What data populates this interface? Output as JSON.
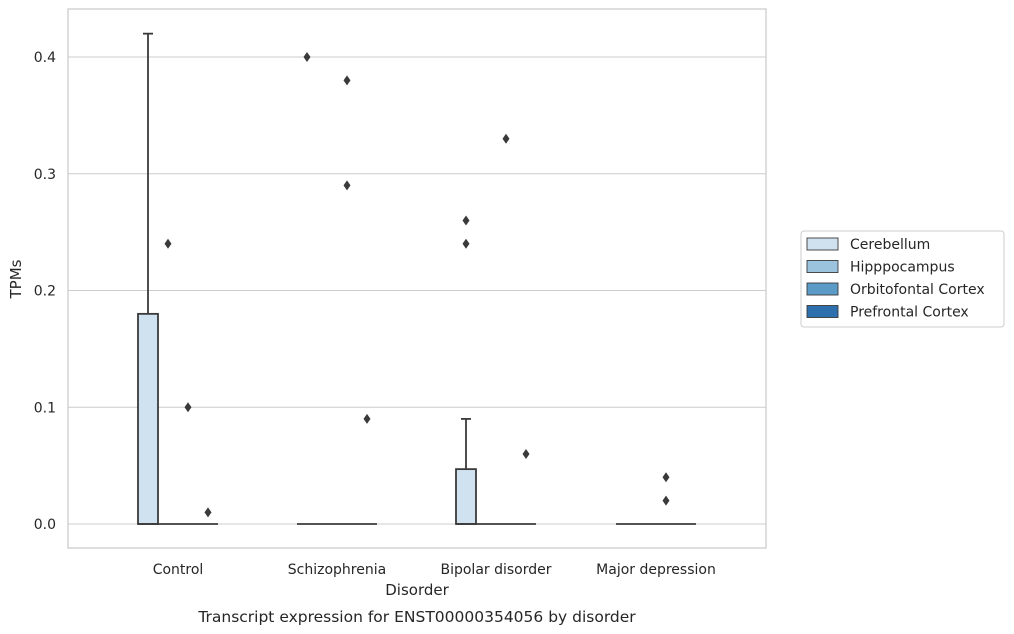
{
  "chart_data": {
    "type": "boxplot",
    "title": "",
    "caption": "Transcript expression for ENST00000354056 by disorder",
    "xlabel": "Disorder",
    "ylabel": "TPMs",
    "ylim": [
      -0.02,
      0.443
    ],
    "yticks": [
      0.0,
      0.1,
      0.2,
      0.3,
      0.4
    ],
    "ytick_labels": [
      "0.0",
      "0.1",
      "0.2",
      "0.3",
      "0.4"
    ],
    "grid": "horizontal",
    "legend": {
      "placement": "right"
    },
    "categories": [
      "Control",
      "Schizophrenia",
      "Bipolar disorder",
      "Major depression"
    ],
    "series": [
      {
        "name": "Cerebellum",
        "color": "#d0e1f0",
        "boxes": [
          {
            "q1": 0.0,
            "median": 0.0,
            "q3": 0.18,
            "whisker_low": 0.0,
            "whisker_high": 0.42,
            "outliers": []
          },
          {
            "q1": 0.0,
            "median": 0.0,
            "q3": 0.0,
            "whisker_low": 0.0,
            "whisker_high": 0.0,
            "outliers": [
              0.4
            ]
          },
          {
            "q1": 0.0,
            "median": 0.0,
            "q3": 0.047,
            "whisker_low": 0.0,
            "whisker_high": 0.09,
            "outliers": [
              0.26,
              0.24
            ]
          },
          {
            "q1": 0.0,
            "median": 0.0,
            "q3": 0.0,
            "whisker_low": 0.0,
            "whisker_high": 0.0,
            "outliers": []
          }
        ]
      },
      {
        "name": "Hipppocampus",
        "color": "#9cc3de",
        "boxes": [
          {
            "q1": 0.0,
            "median": 0.0,
            "q3": 0.0,
            "whisker_low": 0.0,
            "whisker_high": 0.0,
            "outliers": [
              0.24
            ]
          },
          {
            "q1": 0.0,
            "median": 0.0,
            "q3": 0.0,
            "whisker_low": 0.0,
            "whisker_high": 0.0,
            "outliers": []
          },
          {
            "q1": 0.0,
            "median": 0.0,
            "q3": 0.0,
            "whisker_low": 0.0,
            "whisker_high": 0.0,
            "outliers": []
          },
          {
            "q1": 0.0,
            "median": 0.0,
            "q3": 0.0,
            "whisker_low": 0.0,
            "whisker_high": 0.0,
            "outliers": []
          }
        ]
      },
      {
        "name": "Orbitofontal Cortex",
        "color": "#5b9bc7",
        "boxes": [
          {
            "q1": 0.0,
            "median": 0.0,
            "q3": 0.0,
            "whisker_low": 0.0,
            "whisker_high": 0.0,
            "outliers": [
              0.1
            ]
          },
          {
            "q1": 0.0,
            "median": 0.0,
            "q3": 0.0,
            "whisker_low": 0.0,
            "whisker_high": 0.0,
            "outliers": [
              0.38,
              0.29
            ]
          },
          {
            "q1": 0.0,
            "median": 0.0,
            "q3": 0.0,
            "whisker_low": 0.0,
            "whisker_high": 0.0,
            "outliers": [
              0.33
            ]
          },
          {
            "q1": 0.0,
            "median": 0.0,
            "q3": 0.0,
            "whisker_low": 0.0,
            "whisker_high": 0.0,
            "outliers": [
              0.04,
              0.02
            ]
          }
        ]
      },
      {
        "name": "Prefrontal Cortex",
        "color": "#2e6fad",
        "boxes": [
          {
            "q1": 0.0,
            "median": 0.0,
            "q3": 0.0,
            "whisker_low": 0.0,
            "whisker_high": 0.0,
            "outliers": [
              0.01
            ]
          },
          {
            "q1": 0.0,
            "median": 0.0,
            "q3": 0.0,
            "whisker_low": 0.0,
            "whisker_high": 0.0,
            "outliers": [
              0.09
            ]
          },
          {
            "q1": 0.0,
            "median": 0.0,
            "q3": 0.0,
            "whisker_low": 0.0,
            "whisker_high": 0.0,
            "outliers": [
              0.06
            ]
          },
          {
            "q1": 0.0,
            "median": 0.0,
            "q3": 0.0,
            "whisker_low": 0.0,
            "whisker_high": 0.0,
            "outliers": []
          }
        ]
      }
    ]
  }
}
